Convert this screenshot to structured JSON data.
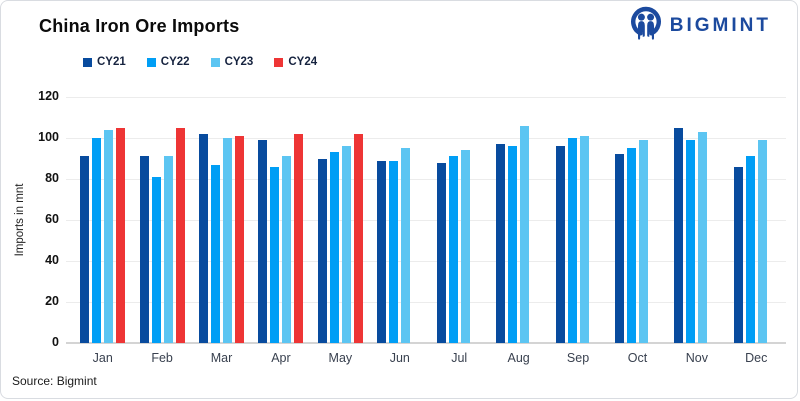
{
  "header": {
    "title": "China Iron Ore Imports",
    "brand": "BIGMINT"
  },
  "footer": {
    "source": "Source: Bigmint"
  },
  "chart_data": {
    "type": "bar",
    "title": "China Iron Ore Imports",
    "xlabel": "",
    "ylabel": "Imports in mnt",
    "ylim": [
      0,
      120
    ],
    "ytick_step": 20,
    "grid": true,
    "legend_position": "top-left",
    "categories": [
      "Jan",
      "Feb",
      "Mar",
      "Apr",
      "May",
      "Jun",
      "Jul",
      "Aug",
      "Sep",
      "Oct",
      "Nov",
      "Dec"
    ],
    "series": [
      {
        "name": "CY21",
        "color": "#084b9e",
        "values": [
          91,
          91,
          102,
          99,
          90,
          89,
          88,
          97,
          96,
          92,
          105,
          86
        ]
      },
      {
        "name": "CY22",
        "color": "#009ef5",
        "values": [
          100,
          81,
          87,
          86,
          93,
          89,
          91,
          96,
          100,
          95,
          99,
          91
        ]
      },
      {
        "name": "CY23",
        "color": "#5cc5f2",
        "values": [
          104,
          91,
          100,
          91,
          96,
          95,
          94,
          106,
          101,
          99,
          103,
          99
        ]
      },
      {
        "name": "CY24",
        "color": "#ee3535",
        "values": [
          105,
          105,
          101,
          102,
          102,
          null,
          null,
          null,
          null,
          null,
          null,
          null
        ]
      }
    ]
  },
  "colors": {
    "brand_blue": "#1c4a9e",
    "gridline": "#ececec",
    "baseline": "#d4d4d4"
  }
}
